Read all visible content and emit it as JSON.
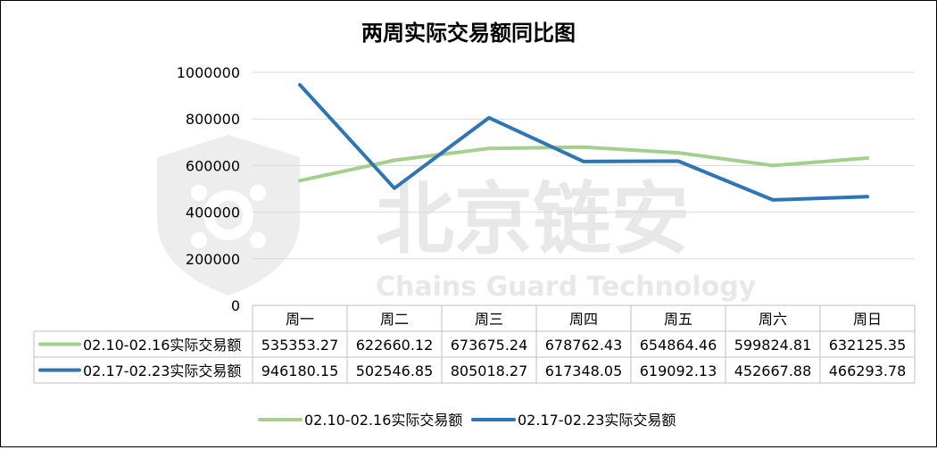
{
  "chart_data": {
    "type": "line",
    "title": "两周实际交易额同比图",
    "categories": [
      "周一",
      "周二",
      "周三",
      "周四",
      "周五",
      "周六",
      "周日"
    ],
    "series": [
      {
        "name": "02.10-02.16实际交易额",
        "color": "#a5cf8d",
        "values": [
          535353.27,
          622660.12,
          673675.24,
          678762.43,
          654864.46,
          599824.81,
          632125.35
        ],
        "labels": [
          "535353.27",
          "622660.12",
          "673675.24",
          "678762.43",
          "654864.46",
          "599824.81",
          "632125.35"
        ]
      },
      {
        "name": "02.17-02.23实际交易额",
        "color": "#2e75b6",
        "values": [
          946180.15,
          502546.85,
          805018.27,
          617348.05,
          619092.13,
          452667.88,
          466293.78
        ],
        "labels": [
          "946180.15",
          "502546.85",
          "805018.27",
          "617348.05",
          "619092.13",
          "452667.88",
          "466293.78"
        ]
      }
    ],
    "yaxis": {
      "ticks": [
        0,
        200000,
        400000,
        600000,
        800000,
        1000000
      ],
      "tick_labels": [
        "0",
        "200000",
        "400000",
        "600000",
        "800000",
        "1000000"
      ],
      "ylim": [
        0,
        1000000
      ]
    },
    "grid": "horizontal",
    "legend": "bottom-center",
    "data_table": true
  },
  "watermark": {
    "cn": "北京链安",
    "en": "Chains Guard Technology",
    "color": "#e6e6e6"
  },
  "colors": {
    "gridline": "#d9d9d9",
    "table_border": "#bfbfbf",
    "text": "#000000"
  }
}
